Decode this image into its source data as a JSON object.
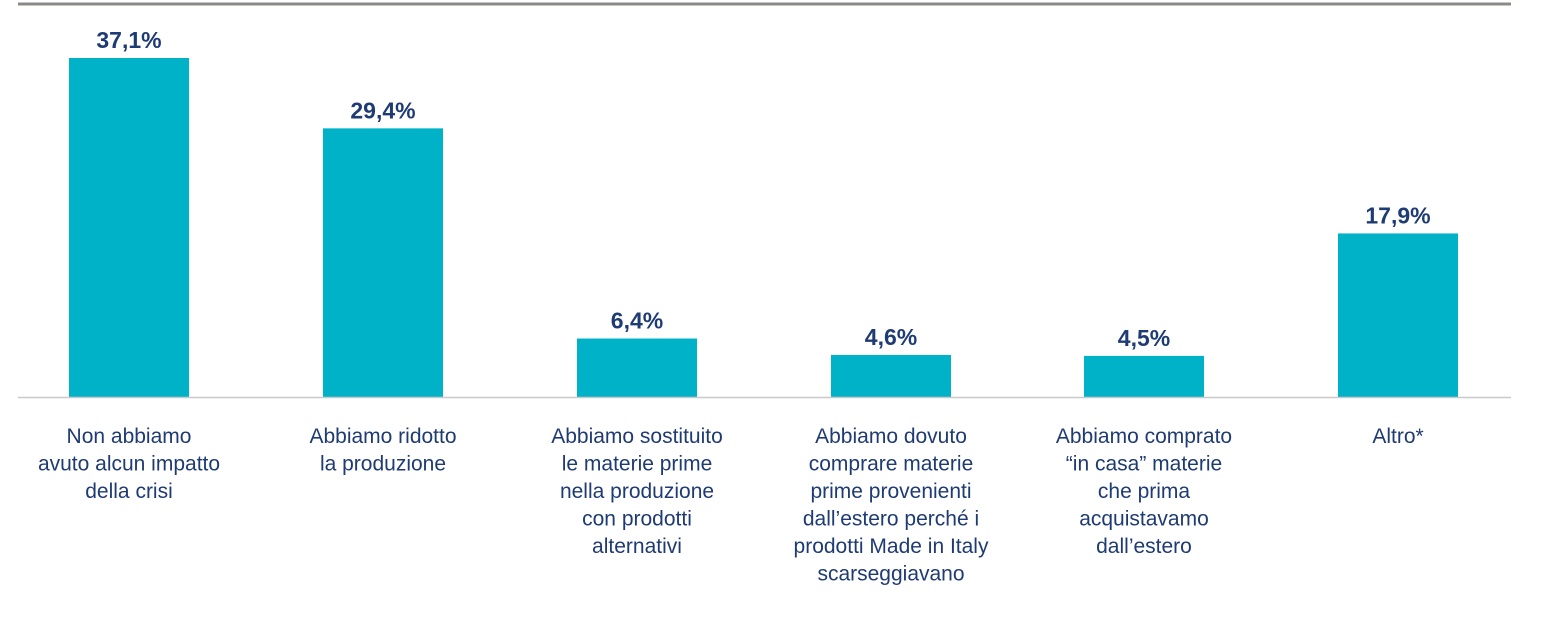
{
  "chart_data": {
    "type": "bar",
    "categories": [
      [
        "Non abbiamo",
        "avuto alcun impatto",
        "della crisi"
      ],
      [
        "Abbiamo ridotto",
        "la produzione"
      ],
      [
        "Abbiamo sostituito",
        "le materie prime",
        "nella produzione",
        "con prodotti",
        "alternativi"
      ],
      [
        "Abbiamo dovuto",
        "comprare materie",
        "prime provenienti",
        "dall’estero perché i",
        "prodotti Made in Italy",
        "scarseggiavano"
      ],
      [
        "Abbiamo comprato",
        "“in casa” materie",
        "che prima",
        "acquistavamo",
        "dall’estero"
      ],
      [
        "Altro*"
      ]
    ],
    "values": [
      37.1,
      29.4,
      6.4,
      4.6,
      4.5,
      17.9
    ],
    "value_labels": [
      "37,1%",
      "29,4%",
      "6,4%",
      "4,6%",
      "4,5%",
      "17,9%"
    ],
    "ylim": [
      0,
      37.1
    ],
    "grid": false,
    "legend": "none"
  },
  "colors": {
    "bar": "#00b2c8",
    "value_label": "#1f3b73",
    "category_label": "#1f3b73",
    "top_rule": "#8c8a84",
    "baseline": "#c9c9c9"
  }
}
